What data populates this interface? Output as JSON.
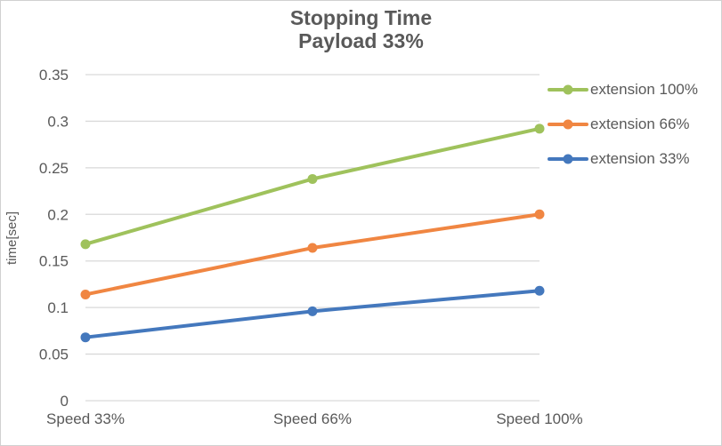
{
  "chart_data": {
    "type": "line",
    "title": "Stopping Time",
    "subtitle": "Payload 33%",
    "ylabel": "time[sec]",
    "xlabel": "",
    "categories": [
      "Speed 33%",
      "Speed 66%",
      "Speed 100%"
    ],
    "series": [
      {
        "name": "extension 100%",
        "color": "#9FC25C",
        "values": [
          0.168,
          0.238,
          0.292
        ]
      },
      {
        "name": "extension 66%",
        "color": "#F08642",
        "values": [
          0.114,
          0.164,
          0.2
        ]
      },
      {
        "name": "extension 33%",
        "color": "#4478BD",
        "values": [
          0.068,
          0.096,
          0.118
        ]
      }
    ],
    "ylim": [
      0,
      0.35
    ],
    "yticks": [
      0,
      0.05,
      0.1,
      0.15,
      0.2,
      0.25,
      0.3,
      0.35
    ],
    "ytick_labels": [
      "0",
      "0.05",
      "0.1",
      "0.15",
      "0.2",
      "0.25",
      "0.3",
      "0.35"
    ],
    "grid": true,
    "legend_position": "right",
    "colors": {
      "text": "#595959",
      "gridline": "#D9D9D9",
      "border": "#D1D1D1"
    }
  }
}
